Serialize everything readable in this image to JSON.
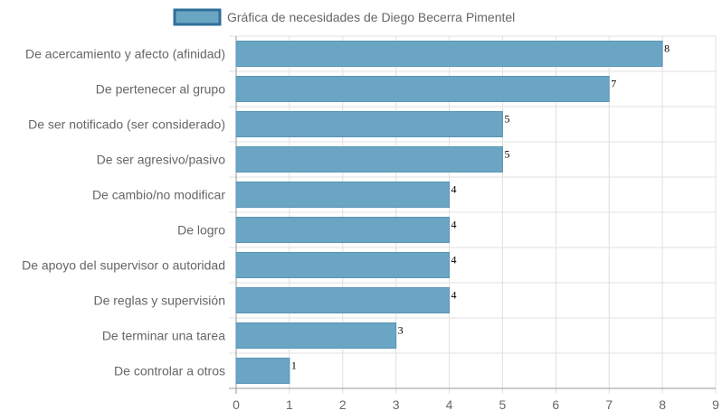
{
  "chart_data": {
    "type": "bar",
    "orientation": "horizontal",
    "categories": [
      "De acercamiento y afecto (afinidad)",
      "De pertenecer al grupo",
      "De ser notificado (ser considerado)",
      "De ser agresivo/pasivo",
      "De cambio/no modificar",
      "De logro",
      "De apoyo del supervisor o autoridad",
      "De reglas y supervisión",
      "De terminar una tarea",
      "De controlar a otros"
    ],
    "series": [
      {
        "name": "Gráfica de necesidades de Diego Becerra Pimentel",
        "values": [
          8,
          7,
          5,
          5,
          4,
          4,
          4,
          4,
          3,
          1
        ],
        "color": "#6aa5c4"
      }
    ],
    "xlim": [
      0,
      9
    ],
    "ticks": [
      "0",
      "1",
      "2",
      "3",
      "4",
      "5",
      "6",
      "7",
      "8",
      "9"
    ],
    "grid": true,
    "legend_position": "top",
    "data_labels": true,
    "colors": {
      "bar_fill": "#6aa5c4",
      "bar_stroke": "#5a95b4",
      "legend_stroke": "#2f6f9a",
      "grid": "#e0e0e0",
      "axis": "#999999"
    }
  }
}
